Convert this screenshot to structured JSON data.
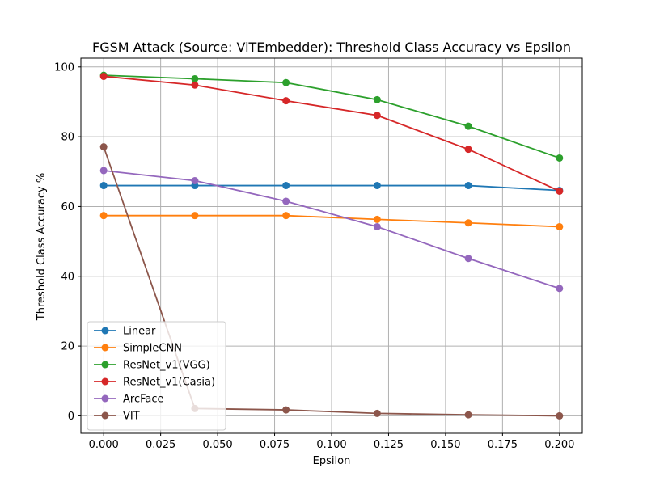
{
  "chart_data": {
    "type": "line",
    "title": "FGSM Attack (Source: ViTEmbedder): Threshold Class Accuracy vs Epsilon",
    "xlabel": "Epsilon",
    "ylabel": "Threshold Class Accuracy %",
    "x": [
      0.0,
      0.04,
      0.08,
      0.12,
      0.16,
      0.2
    ],
    "xlim": [
      -0.01,
      0.21
    ],
    "ylim": [
      -5,
      102.5
    ],
    "xticks": [
      0.0,
      0.025,
      0.05,
      0.075,
      0.1,
      0.125,
      0.15,
      0.175,
      0.2
    ],
    "xtick_labels": [
      "0.000",
      "0.025",
      "0.050",
      "0.075",
      "0.100",
      "0.125",
      "0.150",
      "0.175",
      "0.200"
    ],
    "yticks": [
      0,
      20,
      40,
      60,
      80,
      100
    ],
    "ytick_labels": [
      "0",
      "20",
      "40",
      "60",
      "80",
      "100"
    ],
    "grid": true,
    "legend_position": "lower-left",
    "series": [
      {
        "name": "Linear",
        "color": "#1f77b4",
        "values": [
          66.0,
          66.0,
          66.0,
          66.0,
          66.0,
          64.6
        ]
      },
      {
        "name": "SimpleCNN",
        "color": "#ff7f0e",
        "values": [
          57.4,
          57.4,
          57.4,
          56.3,
          55.3,
          54.2
        ]
      },
      {
        "name": "ResNet_v1(VGG)",
        "color": "#2ca02c",
        "values": [
          97.6,
          96.6,
          95.5,
          90.6,
          83.0,
          73.9
        ]
      },
      {
        "name": "ResNet_v1(Casia)",
        "color": "#d62728",
        "values": [
          97.3,
          94.8,
          90.3,
          86.1,
          76.4,
          64.4
        ]
      },
      {
        "name": "ArcFace",
        "color": "#9467bd",
        "values": [
          70.3,
          67.4,
          61.5,
          54.2,
          45.1,
          36.5
        ]
      },
      {
        "name": "VIT",
        "color": "#8c564b",
        "values": [
          77.1,
          2.1,
          1.7,
          0.7,
          0.3,
          0.0
        ]
      }
    ]
  }
}
